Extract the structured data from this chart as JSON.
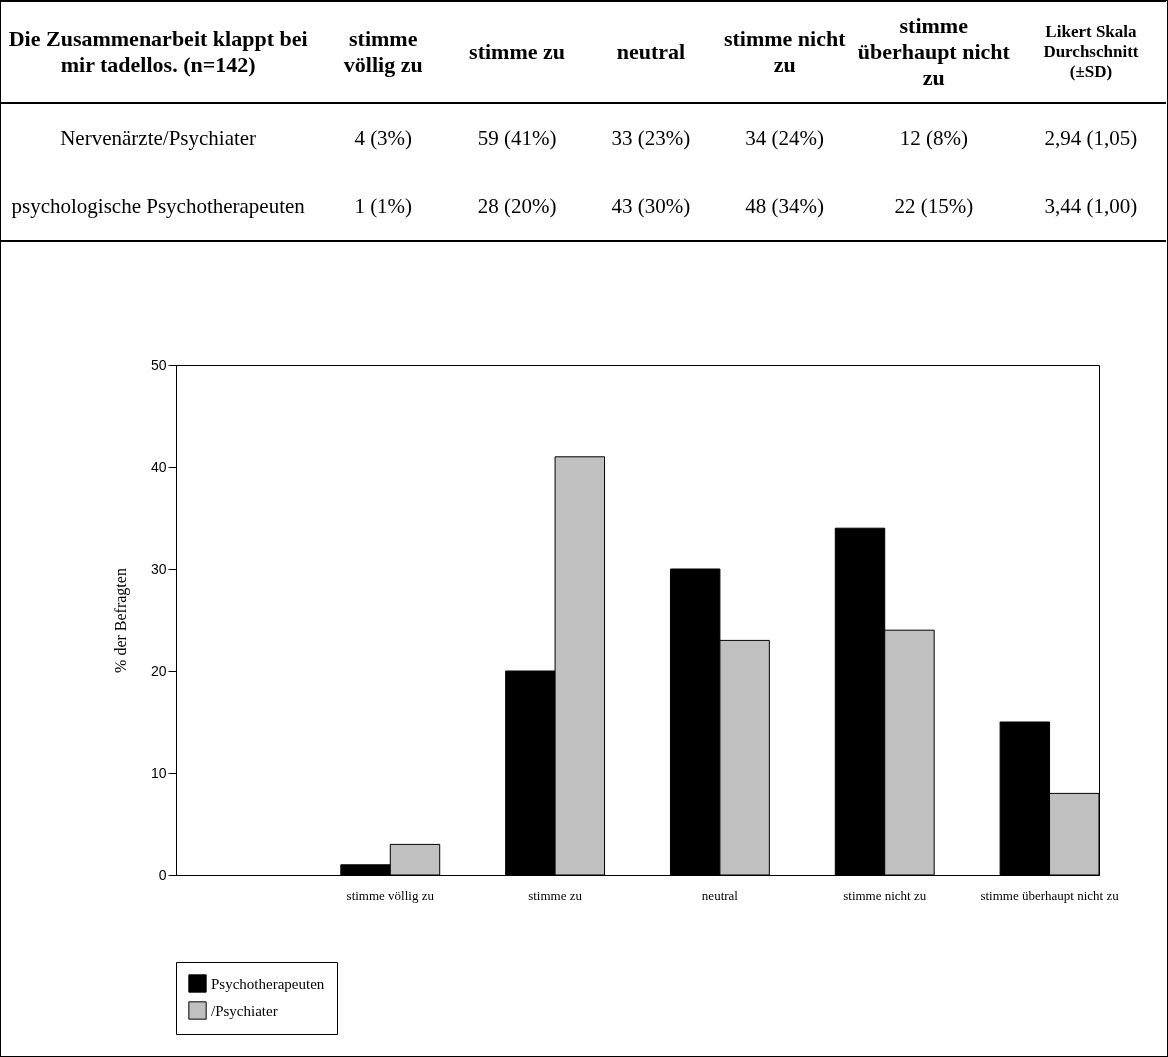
{
  "chart_data": [
    {
      "type": "other",
      "annotations": [
        "Die Zusammenarbeit klappt bei mir tadellos. (n=142)",
        "stimme völlig zu",
        "stimme zu",
        "neutral",
        "stimme nicht zu",
        "stimme überhaupt nicht zu",
        "Likert Skala Durchschnitt (±SD)",
        "Nervenärzte/Psychiater",
        "4 (3%)",
        "59 (41%)",
        "33 (23%)",
        "34 (24%)",
        "12 (8%)",
        "2,94 (1,05)",
        "psychologische Psychotherapeuten",
        "1 (1%)",
        "28 (20%)",
        "43 (30%)",
        "48 (34%)",
        "22 (15%)",
        "3,44 (1,00)"
      ]
    },
    {
      "type": "bar",
      "ylabel": "% der Befragten",
      "categories": [
        null,
        "stimme völlig zu",
        "stimme zu",
        "neutral",
        "stimme nicht zu",
        "stimme überhaupt nicht zu"
      ],
      "series": [
        {
          "name": "Psychotherapeuten",
          "color": "#000000",
          "values": [
            null,
            1,
            20,
            30,
            34,
            15
          ]
        },
        {
          "name": "/Psychiater",
          "color": "#c0c0c0",
          "values": [
            null,
            3,
            41,
            23,
            24,
            8
          ]
        }
      ],
      "ylim": [
        0,
        50
      ],
      "yticks": [
        0,
        10,
        20,
        30,
        40,
        50
      ],
      "grid": false,
      "legend": "bottom"
    }
  ]
}
